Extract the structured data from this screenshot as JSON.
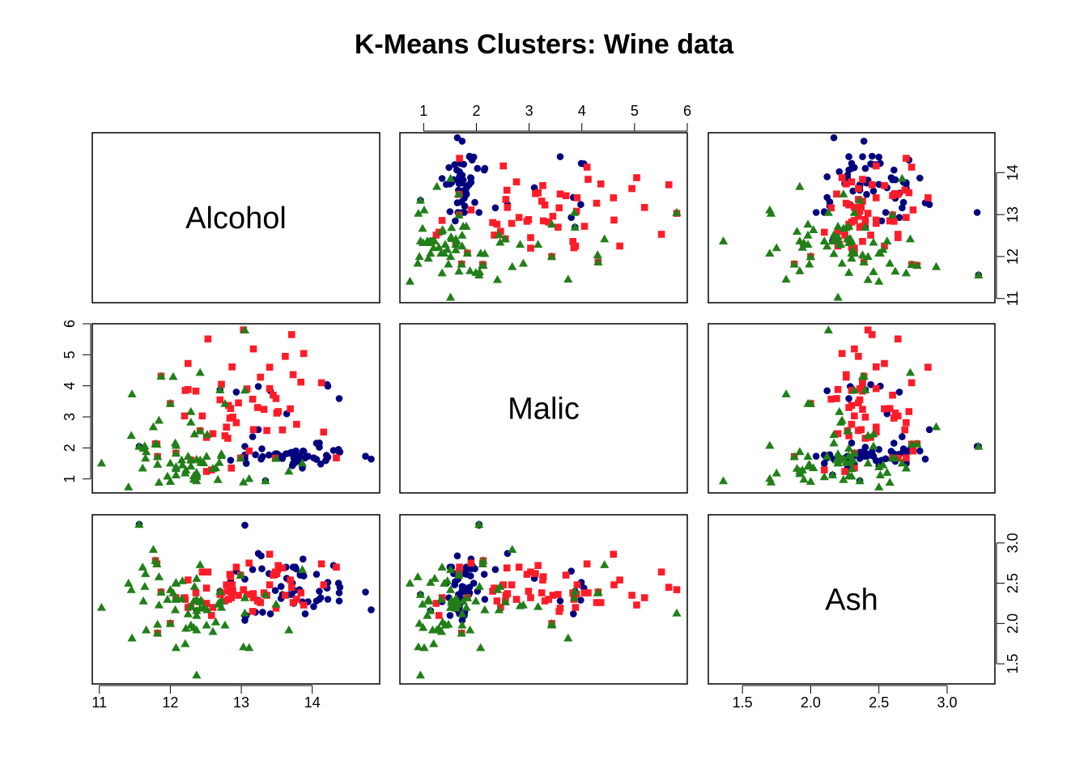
{
  "chart_data": {
    "type": "scatter",
    "title": "K-Means Clusters: Wine data",
    "variables": [
      "Alcohol",
      "Malic",
      "Ash"
    ],
    "ranges": {
      "Alcohol": [
        10.9,
        14.95
      ],
      "Malic": [
        0.55,
        6.0
      ],
      "Ash": [
        1.25,
        3.35
      ]
    },
    "ticks": {
      "Alcohol": [
        "11",
        "12",
        "13",
        "14"
      ],
      "Malic": [
        "1",
        "2",
        "3",
        "4",
        "5",
        "6"
      ],
      "Ash": [
        "1.5",
        "2.0",
        "2.5",
        "3.0"
      ]
    },
    "cluster_colors": [
      "#00007f",
      "#ff1c28",
      "#217f18"
    ],
    "cluster_markers": [
      "circle",
      "square",
      "triangle"
    ],
    "grid": false,
    "legend": "none",
    "series": [
      {
        "cluster": 1,
        "points": [
          [
            13.2,
            1.78,
            2.14
          ],
          [
            13.16,
            2.36,
            2.67
          ],
          [
            14.37,
            1.95,
            2.5
          ],
          [
            13.24,
            2.59,
            2.87
          ],
          [
            14.2,
            1.76,
            2.45
          ],
          [
            14.39,
            1.87,
            2.45
          ],
          [
            14.06,
            2.15,
            2.61
          ],
          [
            14.83,
            1.64,
            2.17
          ],
          [
            13.86,
            1.35,
            2.27
          ],
          [
            14.1,
            2.16,
            2.3
          ],
          [
            14.12,
            1.48,
            2.32
          ],
          [
            13.75,
            1.73,
            2.41
          ],
          [
            14.75,
            1.73,
            2.39
          ],
          [
            14.38,
            1.87,
            2.38
          ],
          [
            13.63,
            1.81,
            2.7
          ],
          [
            14.3,
            1.92,
            2.72
          ],
          [
            13.83,
            1.57,
            2.62
          ],
          [
            14.19,
            1.59,
            2.48
          ],
          [
            13.64,
            3.1,
            2.56
          ],
          [
            14.06,
            1.63,
            2.28
          ],
          [
            12.93,
            3.8,
            2.65
          ],
          [
            13.71,
            1.86,
            2.36
          ],
          [
            12.85,
            1.6,
            2.52
          ],
          [
            13.5,
            1.81,
            2.61
          ],
          [
            13.05,
            2.05,
            3.22
          ],
          [
            13.39,
            1.77,
            2.62
          ],
          [
            13.3,
            1.72,
            2.14
          ],
          [
            13.87,
            1.9,
            2.8
          ],
          [
            14.02,
            1.68,
            2.21
          ],
          [
            13.73,
            1.5,
            2.7
          ],
          [
            13.58,
            1.66,
            2.36
          ],
          [
            13.68,
            1.83,
            2.36
          ],
          [
            13.76,
            1.53,
            2.7
          ],
          [
            13.51,
            1.8,
            2.65
          ],
          [
            13.48,
            1.81,
            2.41
          ],
          [
            13.28,
            1.64,
            2.84
          ],
          [
            13.05,
            1.65,
            2.55
          ],
          [
            13.07,
            1.5,
            2.1
          ],
          [
            14.22,
            3.99,
            2.51
          ],
          [
            13.56,
            1.71,
            2.31
          ],
          [
            13.41,
            3.84,
            2.12
          ],
          [
            13.88,
            1.89,
            2.59
          ],
          [
            13.24,
            3.98,
            2.29
          ],
          [
            13.05,
            1.77,
            2.1
          ],
          [
            14.21,
            4.04,
            2.44
          ],
          [
            14.38,
            3.59,
            2.28
          ],
          [
            13.9,
            1.68,
            2.12
          ],
          [
            14.1,
            2.02,
            2.4
          ],
          [
            13.94,
            1.73,
            2.27
          ],
          [
            13.05,
            1.73,
            2.04
          ],
          [
            13.83,
            1.65,
            2.6
          ],
          [
            13.82,
            1.75,
            2.42
          ],
          [
            13.77,
            1.9,
            2.68
          ],
          [
            13.74,
            1.67,
            2.25
          ],
          [
            13.56,
            1.73,
            2.46
          ],
          [
            14.22,
            1.7,
            2.3
          ],
          [
            13.29,
            1.97,
            2.68
          ],
          [
            13.72,
            1.43,
            2.5
          ],
          [
            11.56,
            2.05,
            3.23
          ],
          [
            12.37,
            1.13,
            2.16
          ],
          [
            13.34,
            0.94,
            2.36
          ],
          [
            12.7,
            3.87,
            2.4
          ]
        ]
      },
      {
        "cluster": 2,
        "points": [
          [
            12.86,
            1.35,
            2.32
          ],
          [
            12.88,
            2.99,
            2.4
          ],
          [
            12.81,
            2.31,
            2.4
          ],
          [
            12.7,
            3.55,
            2.36
          ],
          [
            12.51,
            1.24,
            2.25
          ],
          [
            12.6,
            2.46,
            2.2
          ],
          [
            12.25,
            4.72,
            2.54
          ],
          [
            12.53,
            5.51,
            2.64
          ],
          [
            13.49,
            3.59,
            2.19
          ],
          [
            12.84,
            2.96,
            2.61
          ],
          [
            12.93,
            2.81,
            2.7
          ],
          [
            13.36,
            2.56,
            2.35
          ],
          [
            13.52,
            3.17,
            2.72
          ],
          [
            13.62,
            4.95,
            2.35
          ],
          [
            12.25,
            3.88,
            2.2
          ],
          [
            13.16,
            3.57,
            2.15
          ],
          [
            13.88,
            5.04,
            2.23
          ],
          [
            12.87,
            4.61,
            2.48
          ],
          [
            13.32,
            3.24,
            2.38
          ],
          [
            13.08,
            3.9,
            2.36
          ],
          [
            13.5,
            3.12,
            2.62
          ],
          [
            12.79,
            2.67,
            2.48
          ],
          [
            13.11,
            1.9,
            2.75
          ],
          [
            13.23,
            3.3,
            2.28
          ],
          [
            12.58,
            1.29,
            2.1
          ],
          [
            13.17,
            5.19,
            2.32
          ],
          [
            13.84,
            4.12,
            2.38
          ],
          [
            12.45,
            3.03,
            2.64
          ],
          [
            14.34,
            1.68,
            2.7
          ],
          [
            13.48,
            1.67,
            2.64
          ],
          [
            12.36,
            3.83,
            2.38
          ],
          [
            13.69,
            3.26,
            2.54
          ],
          [
            12.85,
            3.27,
            2.58
          ],
          [
            12.96,
            3.45,
            2.35
          ],
          [
            13.78,
            2.76,
            2.3
          ],
          [
            13.73,
            4.36,
            2.26
          ],
          [
            13.45,
            3.7,
            2.6
          ],
          [
            12.82,
            3.37,
            2.3
          ],
          [
            13.58,
            2.58,
            2.69
          ],
          [
            13.4,
            4.6,
            2.86
          ],
          [
            12.2,
            3.03,
            2.32
          ],
          [
            12.77,
            2.39,
            2.28
          ],
          [
            14.16,
            2.51,
            2.48
          ],
          [
            13.71,
            5.65,
            2.45
          ],
          [
            13.4,
            3.91,
            2.48
          ],
          [
            13.27,
            4.28,
            2.26
          ],
          [
            13.17,
            2.59,
            2.37
          ],
          [
            14.13,
            4.1,
            2.74
          ],
          [
            11.82,
            1.72,
            1.88
          ],
          [
            12.08,
            1.83,
            2.32
          ],
          [
            12.0,
            3.43,
            2.0
          ],
          [
            11.81,
            2.12,
            2.74
          ],
          [
            12.29,
            1.61,
            2.21
          ],
          [
            12.42,
            2.55,
            2.27
          ],
          [
            12.99,
            1.67,
            2.6
          ],
          [
            13.03,
            5.8,
            2.42
          ],
          [
            12.72,
            4.05,
            2.38
          ],
          [
            11.87,
            4.31,
            2.39
          ],
          [
            11.79,
            2.13,
            2.78
          ],
          [
            12.21,
            3.85,
            2.3
          ],
          [
            12.51,
            2.34,
            2.44
          ]
        ]
      },
      {
        "cluster": 3,
        "points": [
          [
            12.37,
            0.94,
            1.36
          ],
          [
            12.33,
            1.1,
            2.28
          ],
          [
            12.64,
            1.36,
            2.02
          ],
          [
            13.67,
            1.25,
            1.92
          ],
          [
            12.37,
            1.13,
            2.16
          ],
          [
            12.17,
            1.45,
            2.53
          ],
          [
            12.37,
            1.21,
            2.56
          ],
          [
            13.11,
            1.01,
            1.7
          ],
          [
            12.37,
            1.17,
            1.92
          ],
          [
            13.34,
            0.94,
            2.36
          ],
          [
            12.21,
            1.19,
            1.75
          ],
          [
            12.29,
            1.61,
            2.21
          ],
          [
            13.86,
            1.51,
            2.67
          ],
          [
            13.49,
            1.66,
            2.24
          ],
          [
            12.99,
            1.67,
            2.6
          ],
          [
            11.96,
            1.09,
            2.3
          ],
          [
            11.66,
            1.88,
            1.92
          ],
          [
            13.03,
            0.9,
            1.71
          ],
          [
            11.84,
            2.89,
            2.23
          ],
          [
            12.33,
            0.99,
            1.95
          ],
          [
            12.7,
            3.87,
            2.4
          ],
          [
            12.0,
            0.92,
            2.0
          ],
          [
            12.72,
            1.81,
            2.2
          ],
          [
            12.08,
            1.13,
            2.51
          ],
          [
            13.05,
            3.86,
            2.32
          ],
          [
            11.84,
            0.89,
            2.58
          ],
          [
            12.67,
            0.98,
            2.24
          ],
          [
            12.16,
            1.61,
            2.31
          ],
          [
            11.65,
            1.67,
            2.62
          ],
          [
            11.64,
            2.06,
            2.46
          ],
          [
            12.08,
            1.33,
            2.3
          ],
          [
            12.08,
            1.83,
            2.32
          ],
          [
            12.0,
            1.51,
            2.42
          ],
          [
            12.69,
            1.53,
            2.26
          ],
          [
            12.29,
            2.83,
            2.22
          ],
          [
            11.62,
            1.99,
            2.28
          ],
          [
            12.47,
            1.52,
            2.2
          ],
          [
            11.81,
            2.12,
            2.74
          ],
          [
            12.29,
            1.41,
            1.98
          ],
          [
            12.37,
            1.07,
            2.1
          ],
          [
            12.29,
            3.17,
            2.21
          ],
          [
            12.08,
            2.08,
            1.7
          ],
          [
            12.6,
            1.34,
            1.9
          ],
          [
            12.34,
            2.45,
            2.46
          ],
          [
            11.82,
            1.72,
            1.88
          ],
          [
            12.51,
            1.73,
            1.98
          ],
          [
            12.42,
            2.55,
            2.27
          ],
          [
            12.25,
            1.73,
            2.12
          ],
          [
            12.72,
            1.75,
            2.28
          ],
          [
            12.22,
            1.29,
            1.94
          ],
          [
            11.61,
            1.35,
            2.7
          ],
          [
            11.46,
            3.74,
            1.82
          ],
          [
            12.52,
            2.43,
            2.17
          ],
          [
            11.76,
            2.68,
            2.92
          ],
          [
            11.41,
            0.74,
            2.5
          ],
          [
            12.08,
            1.39,
            2.5
          ],
          [
            11.03,
            1.51,
            2.2
          ],
          [
            11.82,
            1.47,
            1.99
          ],
          [
            12.42,
            1.61,
            2.19
          ],
          [
            12.77,
            3.43,
            1.98
          ],
          [
            12.0,
            3.43,
            2.0
          ],
          [
            11.45,
            2.4,
            2.42
          ],
          [
            11.56,
            2.05,
            3.23
          ],
          [
            12.42,
            4.43,
            2.73
          ],
          [
            13.05,
            5.8,
            2.13
          ],
          [
            11.87,
            4.31,
            2.39
          ],
          [
            12.07,
            2.16,
            2.17
          ],
          [
            12.43,
            1.53,
            2.29
          ],
          [
            11.79,
            2.13,
            2.78
          ],
          [
            12.37,
            1.63,
            2.3
          ],
          [
            12.04,
            4.3,
            2.38
          ]
        ]
      }
    ]
  }
}
